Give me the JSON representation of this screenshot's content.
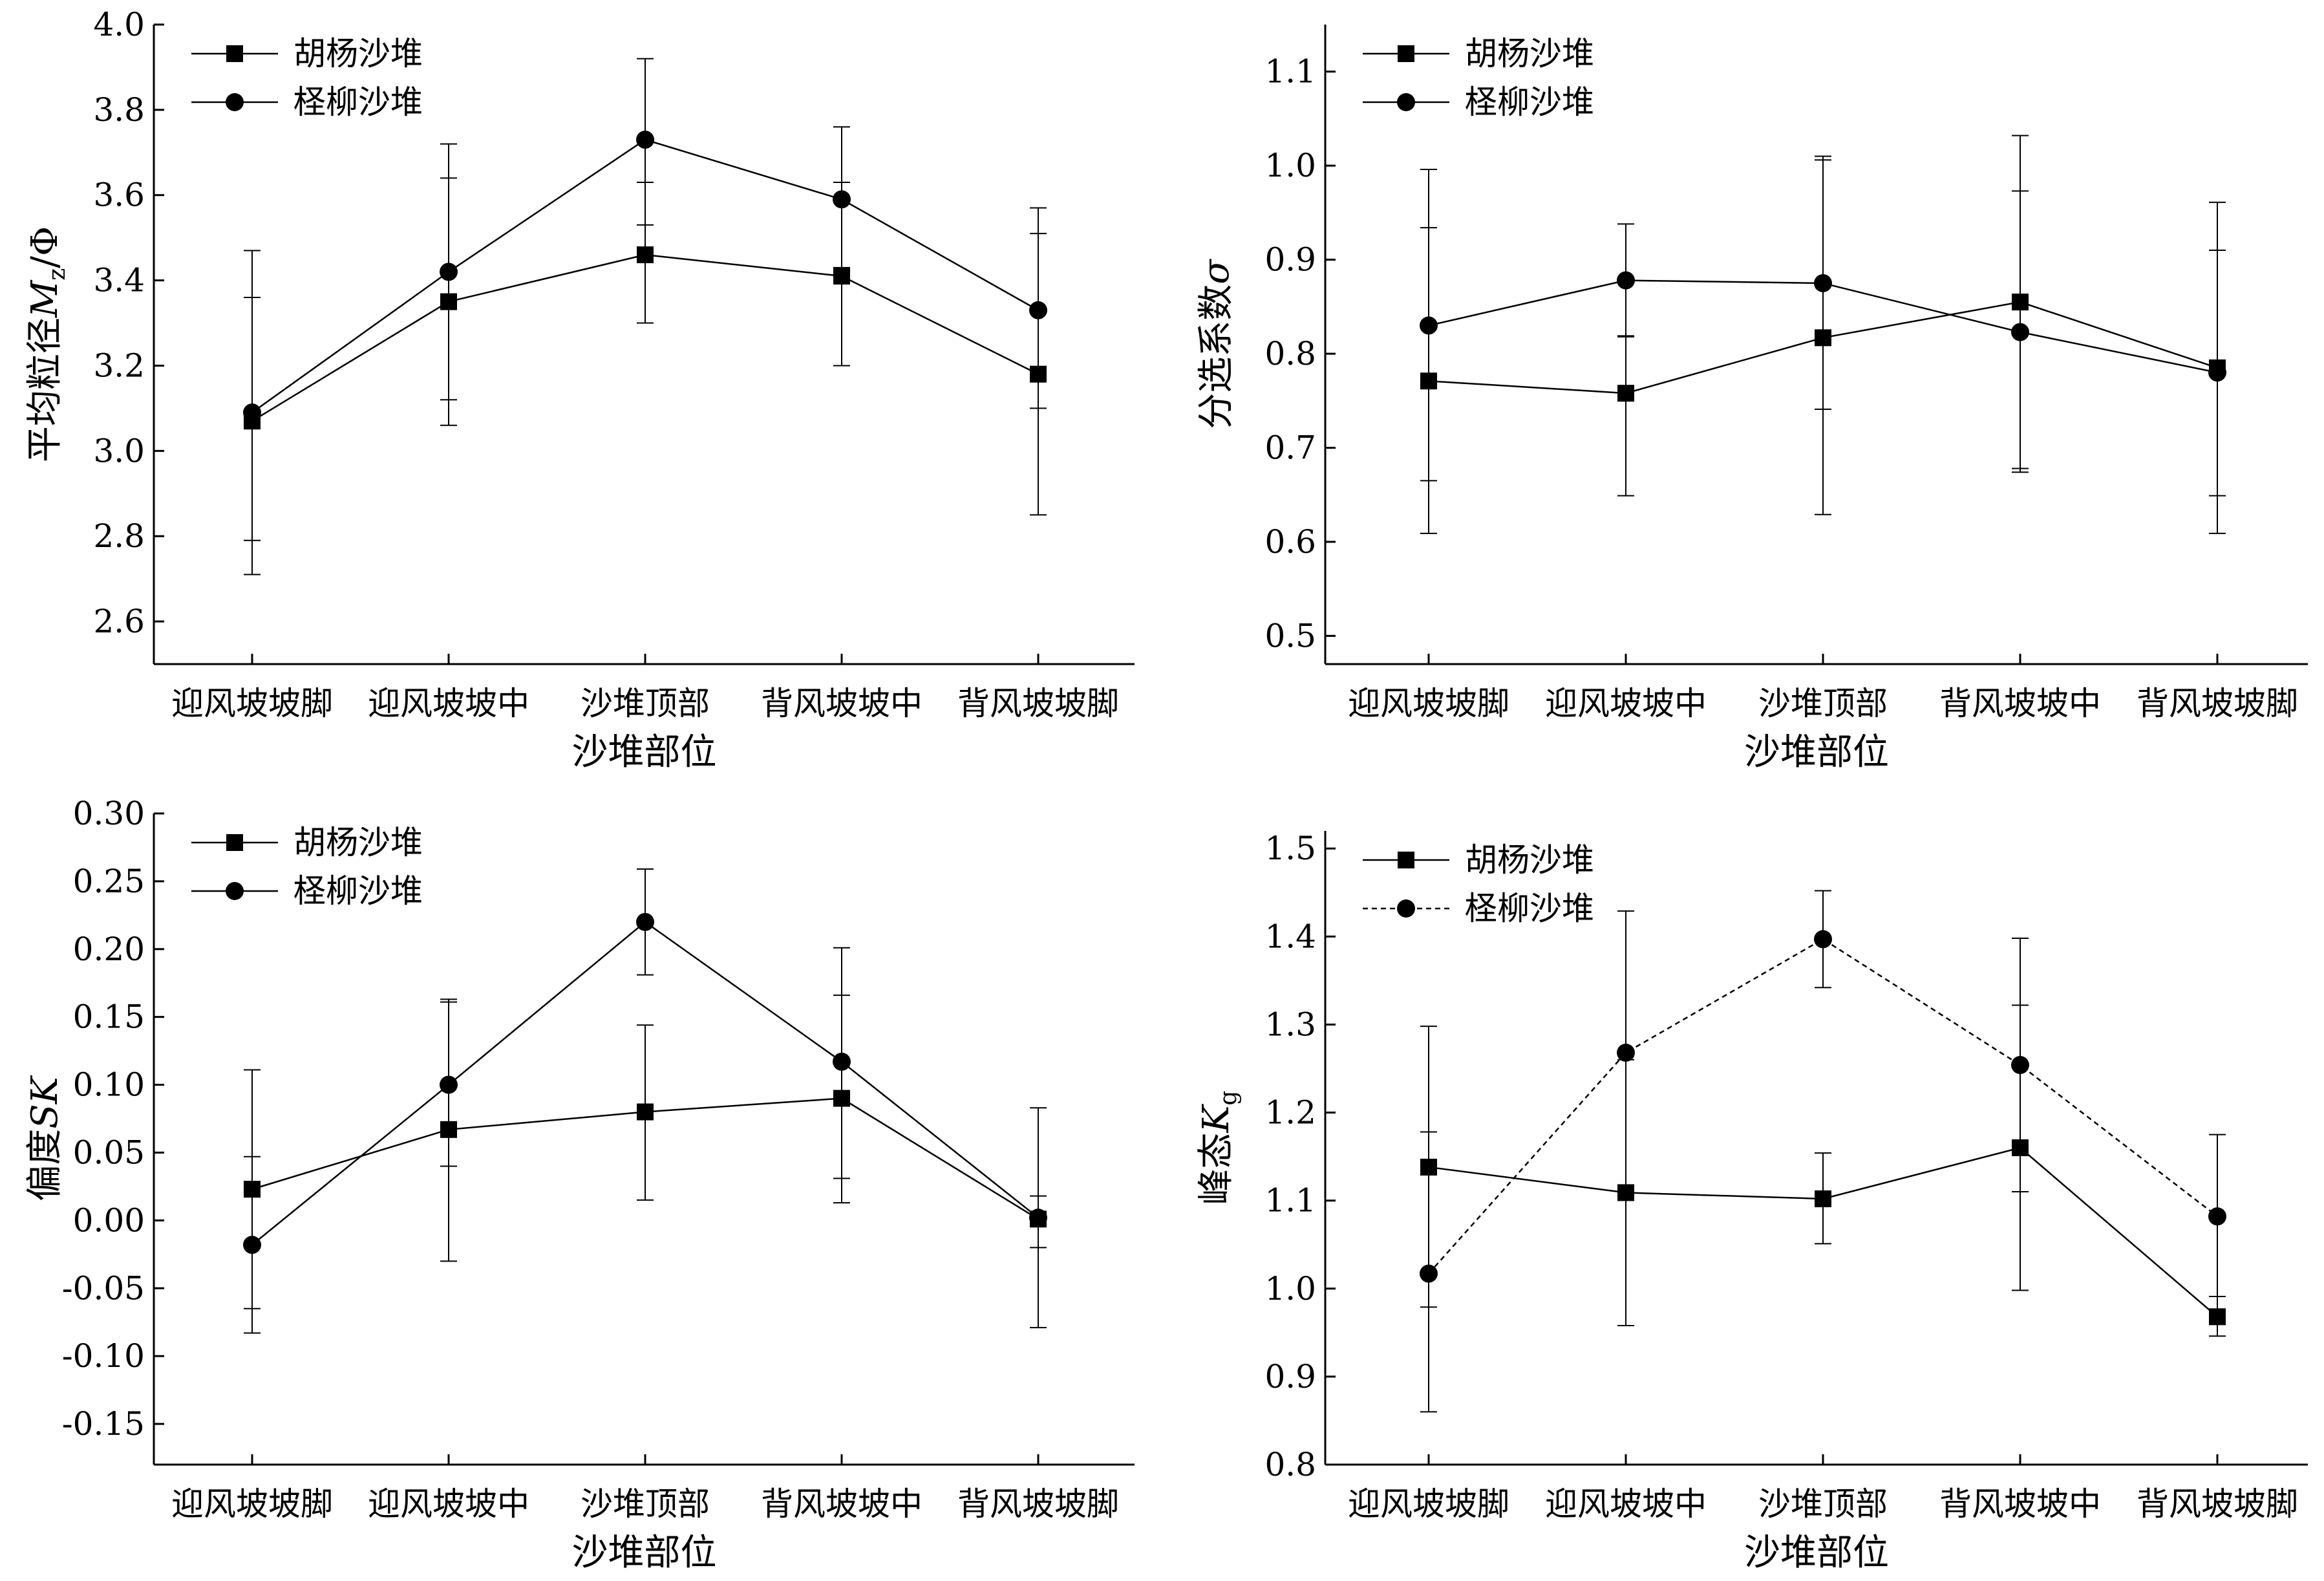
{
  "figure": {
    "legend_names": [
      "胡杨沙堆",
      "柽柳沙堆"
    ],
    "category_axis_title": "沙堆部位"
  },
  "chart_data": [
    {
      "type": "line",
      "ylabel": "平均粒径Mz/Φ",
      "ylabel_parts": {
        "main": "平均粒径",
        "var": "M",
        "sub": "z",
        "tail": "/Φ"
      },
      "xlabel": "沙堆部位",
      "categories": [
        "迎风坡坡脚",
        "迎风坡坡中",
        "沙堆顶部",
        "背风坡坡中",
        "背风坡坡脚"
      ],
      "ylim": [
        2.5,
        4.0
      ],
      "yticks": [
        2.6,
        2.8,
        3.0,
        3.2,
        3.4,
        3.6,
        3.8,
        4.0
      ],
      "ytick_labels": [
        "2.6",
        "2.8",
        "3.0",
        "3.2",
        "3.4",
        "3.6",
        "3.8",
        "4.0"
      ],
      "legend_position": "top-left",
      "grid": false,
      "series": [
        {
          "name": "胡杨沙堆",
          "marker": "square",
          "line": "solid",
          "values": [
            3.07,
            3.35,
            3.46,
            3.41,
            3.18
          ],
          "err_low": [
            2.79,
            3.06,
            3.3,
            3.2,
            2.85
          ],
          "err_high": [
            3.36,
            3.64,
            3.63,
            3.63,
            3.51
          ]
        },
        {
          "name": "柽柳沙堆",
          "marker": "circle",
          "line": "solid",
          "values": [
            3.09,
            3.42,
            3.73,
            3.59,
            3.33
          ],
          "err_low": [
            2.71,
            3.12,
            3.53,
            3.43,
            3.1
          ],
          "err_high": [
            3.47,
            3.72,
            3.92,
            3.76,
            3.57
          ]
        }
      ]
    },
    {
      "type": "line",
      "ylabel": "分选系数σ",
      "ylabel_parts": {
        "main": "分选系数",
        "var": "σ",
        "sub": "",
        "tail": ""
      },
      "xlabel": "沙堆部位",
      "categories": [
        "迎风坡坡脚",
        "迎风坡坡中",
        "沙堆顶部",
        "背风坡坡中",
        "背风坡坡脚"
      ],
      "ylim": [
        0.47,
        1.15
      ],
      "yticks": [
        0.5,
        0.6,
        0.7,
        0.8,
        0.9,
        1.0,
        1.1
      ],
      "ytick_labels": [
        "0.5",
        "0.6",
        "0.7",
        "0.8",
        "0.9",
        "1.0",
        "1.1"
      ],
      "legend_position": "top-left",
      "grid": false,
      "series": [
        {
          "name": "胡杨沙堆",
          "marker": "square",
          "line": "solid",
          "values": [
            0.771,
            0.758,
            0.817,
            0.855,
            0.785
          ],
          "err_low": [
            0.609,
            0.649,
            0.629,
            0.674,
            0.609
          ],
          "err_high": [
            0.934,
            0.818,
            1.006,
            1.032,
            0.961
          ]
        },
        {
          "name": "柽柳沙堆",
          "marker": "circle",
          "line": "solid",
          "values": [
            0.83,
            0.878,
            0.875,
            0.823,
            0.78
          ],
          "err_low": [
            0.665,
            0.819,
            0.741,
            0.678,
            0.649
          ],
          "err_high": [
            0.996,
            0.938,
            1.01,
            0.973,
            0.91
          ]
        }
      ]
    },
    {
      "type": "line",
      "ylabel": "偏度SK",
      "ylabel_parts": {
        "main": "偏度",
        "var": "SK",
        "sub": "",
        "tail": ""
      },
      "xlabel": "沙堆部位",
      "categories": [
        "迎风坡坡脚",
        "迎风坡坡中",
        "沙堆顶部",
        "背风坡坡中",
        "背风坡坡脚"
      ],
      "ylim": [
        -0.18,
        0.3
      ],
      "yticks": [
        -0.15,
        -0.1,
        -0.05,
        0.0,
        0.05,
        0.1,
        0.15,
        0.2,
        0.25,
        0.3
      ],
      "ytick_labels": [
        "-0.15",
        "-0.10",
        "-0.05",
        "0.00",
        "0.05",
        "0.10",
        "0.15",
        "0.20",
        "0.25",
        "0.30"
      ],
      "legend_position": "top-left",
      "grid": false,
      "series": [
        {
          "name": "胡杨沙堆",
          "marker": "square",
          "line": "solid",
          "values": [
            0.023,
            0.067,
            0.08,
            0.09,
            0.001
          ],
          "err_low": [
            -0.065,
            -0.03,
            0.015,
            0.013,
            -0.02
          ],
          "err_high": [
            0.111,
            0.163,
            0.144,
            0.166,
            0.018
          ]
        },
        {
          "name": "柽柳沙堆",
          "marker": "circle",
          "line": "solid",
          "values": [
            -0.018,
            0.1,
            0.22,
            0.117,
            0.002
          ],
          "err_low": [
            -0.083,
            0.04,
            0.181,
            0.031,
            -0.079
          ],
          "err_high": [
            0.047,
            0.161,
            0.259,
            0.201,
            0.083
          ]
        }
      ]
    },
    {
      "type": "line",
      "ylabel": "峰态Kg",
      "ylabel_parts": {
        "main": "峰态",
        "var": "K",
        "sub": "g",
        "tail": ""
      },
      "xlabel": "沙堆部位",
      "categories": [
        "迎风坡坡脚",
        "迎风坡坡中",
        "沙堆顶部",
        "背风坡坡中",
        "背风坡坡脚"
      ],
      "ylim": [
        0.8,
        1.52
      ],
      "yticks": [
        0.8,
        0.9,
        1.0,
        1.1,
        1.2,
        1.3,
        1.4,
        1.5
      ],
      "ytick_labels": [
        "0.8",
        "0.9",
        "1.0",
        "1.1",
        "1.2",
        "1.3",
        "1.4",
        "1.5"
      ],
      "legend_position": "top-left",
      "grid": false,
      "series": [
        {
          "name": "胡杨沙堆",
          "marker": "square",
          "line": "solid",
          "values": [
            1.138,
            1.109,
            1.102,
            1.16,
            0.968
          ],
          "err_low": [
            0.979,
            0.958,
            1.051,
            0.998,
            0.946
          ],
          "err_high": [
            1.298,
            1.26,
            1.154,
            1.322,
            0.991
          ]
        },
        {
          "name": "柽柳沙堆",
          "marker": "circle",
          "line": "dashed",
          "values": [
            1.017,
            1.268,
            1.397,
            1.254,
            1.082
          ],
          "err_low": [
            0.86,
            1.108,
            1.342,
            1.11,
            0.991
          ],
          "err_high": [
            1.178,
            1.429,
            1.452,
            1.398,
            1.175
          ]
        }
      ]
    }
  ]
}
